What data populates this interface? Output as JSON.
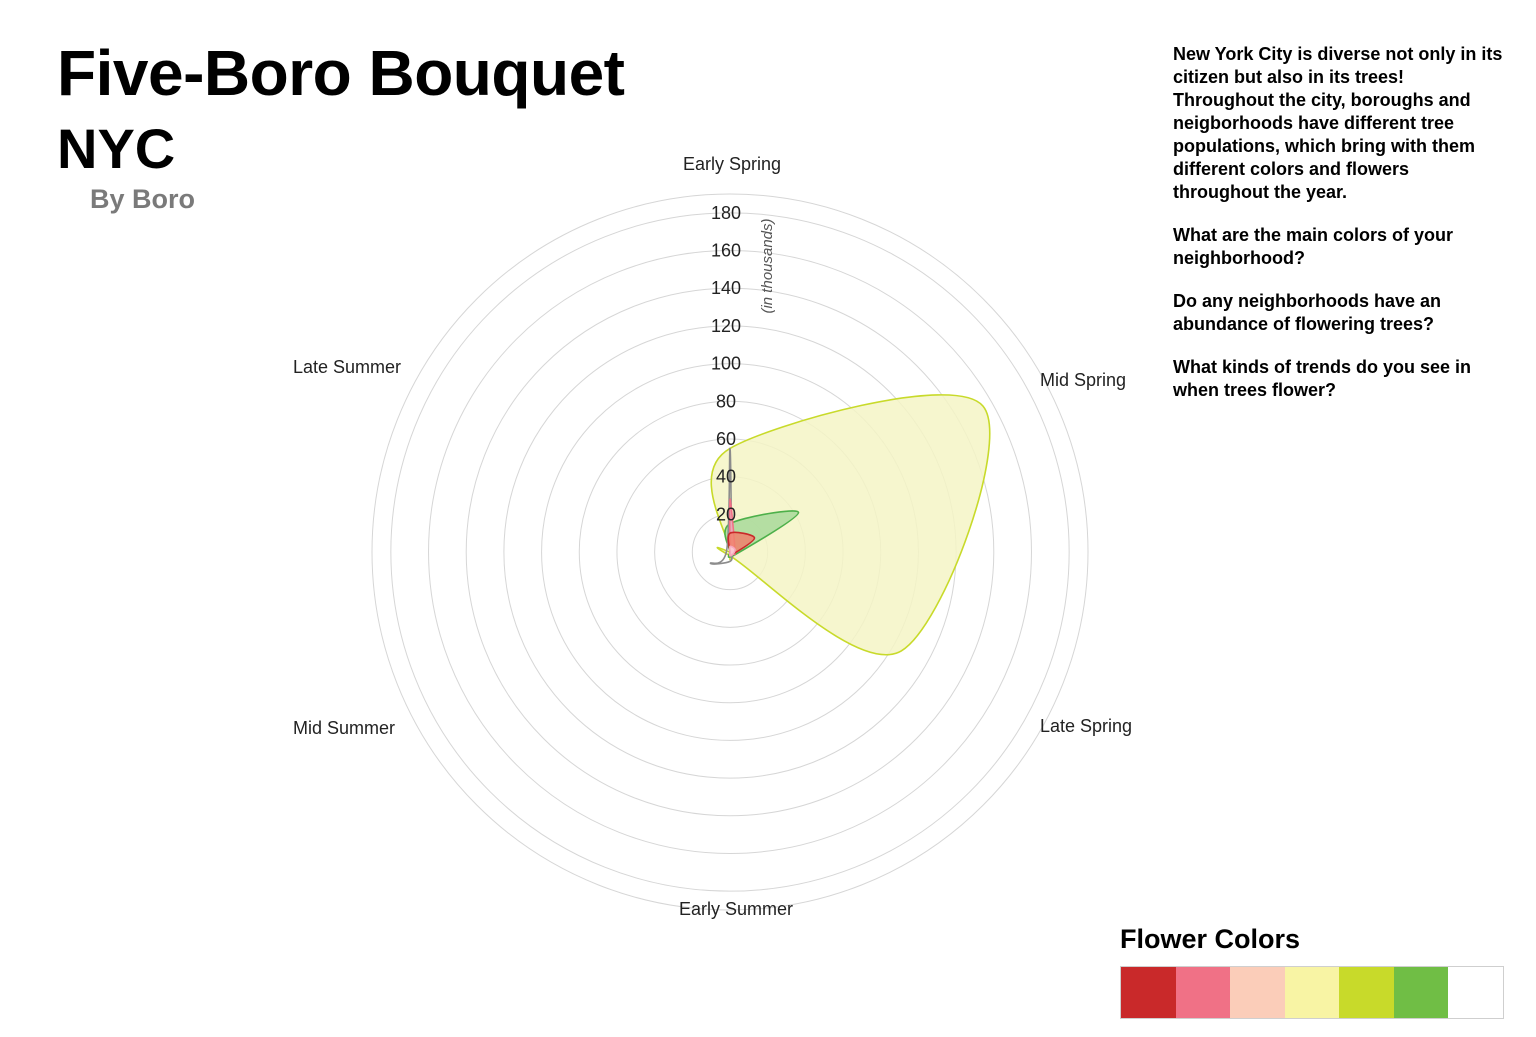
{
  "title": "Five-Boro Bouquet",
  "subtitle": "NYC",
  "byline": "By Boro",
  "intro": [
    "New York City is diverse not only in its citizen but also in its trees! Throughout the city, boroughs and neigborhoods have different tree populations, which bring with them different colors and flowers throughout the year.",
    "What are the main colors of your neighborhood?",
    "Do any neighborhoods have an abundance of flowering trees?",
    "What kinds of trends do you see in when trees flower?"
  ],
  "legend": {
    "title": "Flower Colors",
    "colors": [
      "#c9292a",
      "#f07186",
      "#fbcdb9",
      "#f8f4a4",
      "#c8da2a",
      "#70be45",
      "#ffffff"
    ]
  },
  "chart_data": {
    "type": "radar",
    "axes": [
      "Early Spring",
      "Mid Spring",
      "Late Spring",
      "Early Summer",
      "Mid Summer",
      "Late Summer"
    ],
    "rings": [
      20,
      40,
      60,
      80,
      100,
      120,
      140,
      160,
      180
    ],
    "ring_labels": [
      "20",
      "40",
      "60",
      "80",
      "100",
      "120",
      "140",
      "160",
      "180"
    ],
    "unit_label": "(in thousands)",
    "rmax": 190,
    "series": [
      {
        "color": "#c8da2a",
        "fill": "#f4f5c6",
        "values": [
          55,
          155,
          105,
          2,
          0,
          0
        ]
      },
      {
        "color": "#4db04a",
        "fill": "#a8d99a",
        "values": [
          15,
          42,
          3,
          0,
          0,
          0
        ]
      },
      {
        "color": "#8c8c8c",
        "fill": "none",
        "values": [
          55,
          1,
          1,
          5,
          12,
          2
        ]
      },
      {
        "color": "#f07186",
        "fill": "#f7b3c2",
        "values": [
          28,
          3,
          2,
          1,
          0,
          0
        ]
      },
      {
        "color": "#c9292a",
        "fill": "#f0806c",
        "values": [
          10,
          15,
          2,
          0,
          0,
          0
        ]
      },
      {
        "color": "#f7a6bd",
        "fill": "#fbd4e0",
        "values": [
          3,
          3,
          2,
          2,
          0,
          0
        ]
      }
    ]
  }
}
